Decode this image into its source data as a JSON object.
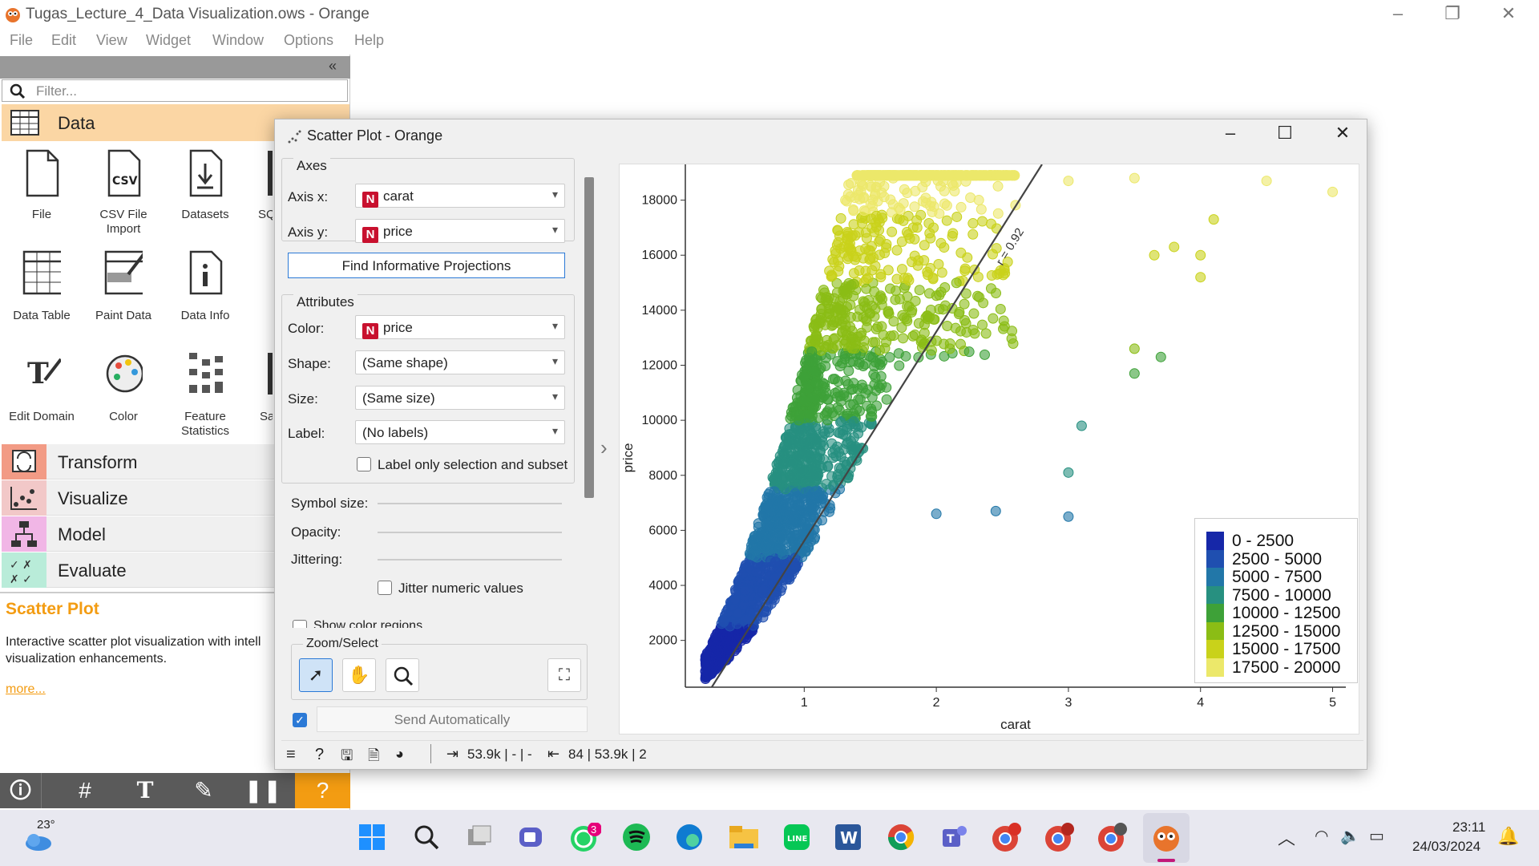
{
  "window": {
    "title": "Tugas_Lecture_4_Data Visualization.ows - Orange"
  },
  "menu": [
    "File",
    "Edit",
    "View",
    "Widget",
    "Window",
    "Options",
    "Help"
  ],
  "panel": {
    "filter_placeholder": "Filter...",
    "data_category": "Data",
    "widgets": [
      {
        "label": "File",
        "icon": "file-icon"
      },
      {
        "label": "CSV File Import",
        "icon": "csv-file-icon"
      },
      {
        "label": "Datasets",
        "icon": "datasets-icon"
      },
      {
        "label": "SQ",
        "icon": "sql-table-icon"
      },
      {
        "label": "Data Table",
        "icon": "data-table-icon"
      },
      {
        "label": "Paint Data",
        "icon": "paint-data-icon"
      },
      {
        "label": "Data Info",
        "icon": "data-info-icon"
      },
      {
        "label": "Edit Domain",
        "icon": "edit-domain-icon"
      },
      {
        "label": "Color",
        "icon": "color-palette-icon"
      },
      {
        "label": "Feature Statistics",
        "icon": "feature-statistics-icon"
      },
      {
        "label": "Sa",
        "icon": "save-data-icon"
      }
    ],
    "categories": [
      "Transform",
      "Visualize",
      "Model",
      "Evaluate"
    ],
    "description": {
      "title": "Scatter Plot",
      "text": "Interactive scatter plot visualization with intell visualization enhancements.",
      "more": "more..."
    }
  },
  "scatter_window": {
    "title": "Scatter Plot - Orange",
    "axes_group": "Axes",
    "axis_x_label": "Axis x:",
    "axis_x_value": "carat",
    "axis_y_label": "Axis y:",
    "axis_y_value": "price",
    "find_projections": "Find Informative Projections",
    "attributes_group": "Attributes",
    "color_label": "Color:",
    "color_value": "price",
    "shape_label": "Shape:",
    "shape_value": "(Same shape)",
    "size_label": "Size:",
    "size_value": "(Same size)",
    "label_label": "Label:",
    "label_value": "(No labels)",
    "label_only_selection": "Label only selection and subset",
    "symbol_size_label": "Symbol size:",
    "opacity_label": "Opacity:",
    "jittering_label": "Jittering:",
    "symbol_size_level": 0.03,
    "opacity_level": 0.62,
    "jittering_level": 0.34,
    "jitter_numeric": "Jitter numeric values",
    "show_color_regions": "Show color regions",
    "zoom_select": "Zoom/Select",
    "send_auto": "Send Automatically",
    "status_in": "53.9k | - | -",
    "status_out": "84 | 53.9k | 2"
  },
  "chart_data": {
    "type": "scatter",
    "xlabel": "carat",
    "ylabel": "price",
    "xlim": [
      0.1,
      5.1
    ],
    "ylim": [
      300,
      19300
    ],
    "x_ticks": [
      "1",
      "2",
      "3",
      "4",
      "5"
    ],
    "y_ticks": [
      "2000",
      "4000",
      "6000",
      "8000",
      "10000",
      "12000",
      "14000",
      "16000",
      "18000"
    ],
    "regression_label": "r = 0.92",
    "regression_line": [
      [
        0.3,
        300
      ],
      [
        2.8,
        19300
      ]
    ],
    "legend_placement": "bottom-right",
    "legend": [
      {
        "label": "0 - 2500",
        "color": "#1627a8"
      },
      {
        "label": "2500 - 5000",
        "color": "#1f4fb0"
      },
      {
        "label": "5000 - 7500",
        "color": "#2277a8"
      },
      {
        "label": "7500 - 10000",
        "color": "#279080"
      },
      {
        "label": "10000 - 12500",
        "color": "#3ea138"
      },
      {
        "label": "12500 - 15000",
        "color": "#8bbd15"
      },
      {
        "label": "15000 - 17500",
        "color": "#c9d21a"
      },
      {
        "label": "17500 - 20000",
        "color": "#ece86a"
      }
    ],
    "outliers": [
      [
        3.0,
        18700
      ],
      [
        3.5,
        18800
      ],
      [
        4.5,
        18700
      ],
      [
        5.0,
        18300
      ],
      [
        4.1,
        17300
      ],
      [
        3.65,
        16000
      ],
      [
        3.8,
        16300
      ],
      [
        4.0,
        16000
      ],
      [
        4.0,
        15200
      ],
      [
        3.5,
        12600
      ],
      [
        3.5,
        11700
      ],
      [
        3.7,
        12300
      ],
      [
        2.0,
        6600
      ],
      [
        2.45,
        6700
      ],
      [
        3.0,
        6500
      ],
      [
        3.0,
        8100
      ],
      [
        3.1,
        9800
      ]
    ]
  },
  "taskbar": {
    "weather": "23°",
    "time": "23:11",
    "date": "24/03/2024",
    "whatsapp_badge": "3"
  }
}
